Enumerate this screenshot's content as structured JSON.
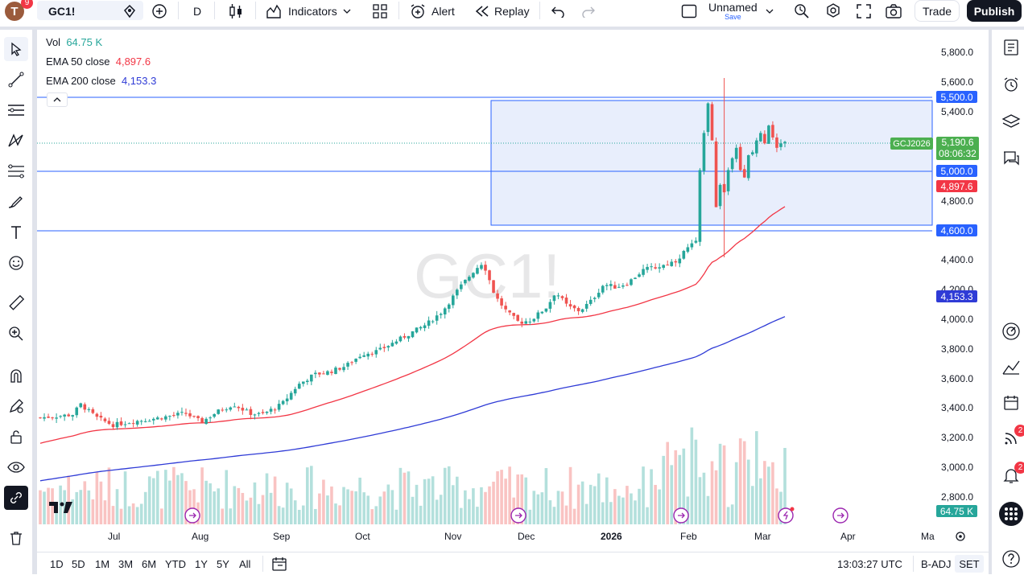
{
  "topbar": {
    "avatar_letter": "T",
    "avatar_badge": "9",
    "symbol": "GC1!",
    "interval": "D",
    "indicators_label": "Indicators",
    "alert_label": "Alert",
    "replay_label": "Replay",
    "layout_name": "Unnamed",
    "layout_save": "Save",
    "trade_label": "Trade",
    "publish_label": "Publish"
  },
  "legend": {
    "vol_label": "Vol",
    "vol_value": "64.75 K",
    "ema50_label": "EMA 50 close",
    "ema50_value": "4,897.6",
    "ema200_label": "EMA 200 close",
    "ema200_value": "4,153.3"
  },
  "watermark": "GC1!",
  "price_axis": {
    "ticks": [
      "5,800.0",
      "5,600.0",
      "5,400.0",
      "4,800.0",
      "4,400.0",
      "4,200.0",
      "4,000.0",
      "3,800.0",
      "3,600.0",
      "3,400.0",
      "3,200.0",
      "3,000.0",
      "2,800.0"
    ],
    "tags": {
      "level_5500": "5,500.0",
      "level_5000": "5,000.0",
      "level_4600": "4,600.0",
      "last_price": "5,190.6",
      "countdown": "08:06:32",
      "contract": "GCJ2026",
      "ema50": "4,897.6",
      "ema200": "4,153.3",
      "volume": "64.75 K"
    }
  },
  "time_axis": [
    "Jul",
    "Aug",
    "Sep",
    "Oct",
    "Nov",
    "Dec",
    "2026",
    "Feb",
    "Mar",
    "Apr",
    "Ma"
  ],
  "bottombar": {
    "ranges": [
      "1D",
      "5D",
      "1M",
      "3M",
      "6M",
      "YTD",
      "1Y",
      "5Y",
      "All"
    ],
    "clock": "13:03:27 UTC",
    "badj": "B-ADJ",
    "set": "SET"
  },
  "rightbar": {
    "chat_badge": "2",
    "alert_badge": "2"
  },
  "colors": {
    "up": "#26a69a",
    "down": "#ef5350",
    "ema50": "#f23645",
    "ema200": "#2f3bd6",
    "level": "#2962ff",
    "zone_fill": "#e8eefc"
  },
  "chart_data": {
    "type": "candlestick",
    "symbol": "GC1!",
    "x": [
      "Jul",
      "Aug",
      "Sep",
      "Oct",
      "Nov",
      "Dec",
      "2026",
      "Feb",
      "Mar"
    ],
    "close_approx": [
      3340,
      3400,
      3650,
      3950,
      4000,
      4300,
      4500,
      5300,
      5190.6
    ],
    "horizontal_levels": [
      5500,
      5000,
      4600
    ],
    "zone": [
      4620,
      5480
    ],
    "ema50_last": 4897.6,
    "ema200_last": 4153.3,
    "last_price": 5190.6,
    "volume_last": "64.75 K"
  }
}
